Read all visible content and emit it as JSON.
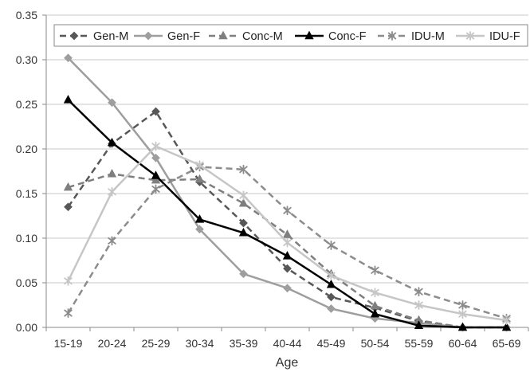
{
  "chart_data": {
    "type": "line",
    "xlabel": "Age",
    "categories": [
      "15-19",
      "20-24",
      "25-29",
      "30-34",
      "35-39",
      "40-44",
      "45-49",
      "50-54",
      "55-59",
      "60-64",
      "65-69"
    ],
    "ylim": [
      0,
      0.35
    ],
    "y_ticks": [
      "0.00",
      "0.05",
      "0.10",
      "0.15",
      "0.20",
      "0.25",
      "0.30",
      "0.35"
    ],
    "grid": true,
    "legend_position": "top",
    "series": [
      {
        "name": "Gen-M",
        "values": [
          0.135,
          0.206,
          0.242,
          0.163,
          0.117,
          0.066,
          0.034,
          0.022,
          0.007,
          0.0,
          0.0
        ],
        "color": "#575757",
        "line_style": "dashed",
        "marker": "diamond"
      },
      {
        "name": "Gen-F",
        "values": [
          0.302,
          0.252,
          0.19,
          0.11,
          0.06,
          0.044,
          0.021,
          0.01,
          0.005,
          0.0,
          0.0
        ],
        "color": "#9e9e9e",
        "line_style": "solid",
        "marker": "diamond"
      },
      {
        "name": "Conc-M",
        "values": [
          0.157,
          0.172,
          0.165,
          0.166,
          0.139,
          0.104,
          0.06,
          0.024,
          0.008,
          0.0,
          0.0
        ],
        "color": "#7f7f7f",
        "line_style": "dashed",
        "marker": "triangle"
      },
      {
        "name": "Conc-F",
        "values": [
          0.255,
          0.207,
          0.17,
          0.121,
          0.106,
          0.08,
          0.048,
          0.015,
          0.002,
          0.0,
          0.0
        ],
        "color": "#000000",
        "line_style": "solid",
        "marker": "triangle"
      },
      {
        "name": "IDU-M",
        "values": [
          0.016,
          0.097,
          0.155,
          0.18,
          0.177,
          0.131,
          0.092,
          0.064,
          0.04,
          0.025,
          0.01
        ],
        "color": "#8c8c8c",
        "line_style": "dashed",
        "marker": "asterisk"
      },
      {
        "name": "IDU-F",
        "values": [
          0.052,
          0.152,
          0.203,
          0.182,
          0.148,
          0.095,
          0.058,
          0.039,
          0.025,
          0.015,
          0.008
        ],
        "color": "#c6c6c6",
        "line_style": "solid",
        "marker": "asterisk"
      }
    ]
  }
}
